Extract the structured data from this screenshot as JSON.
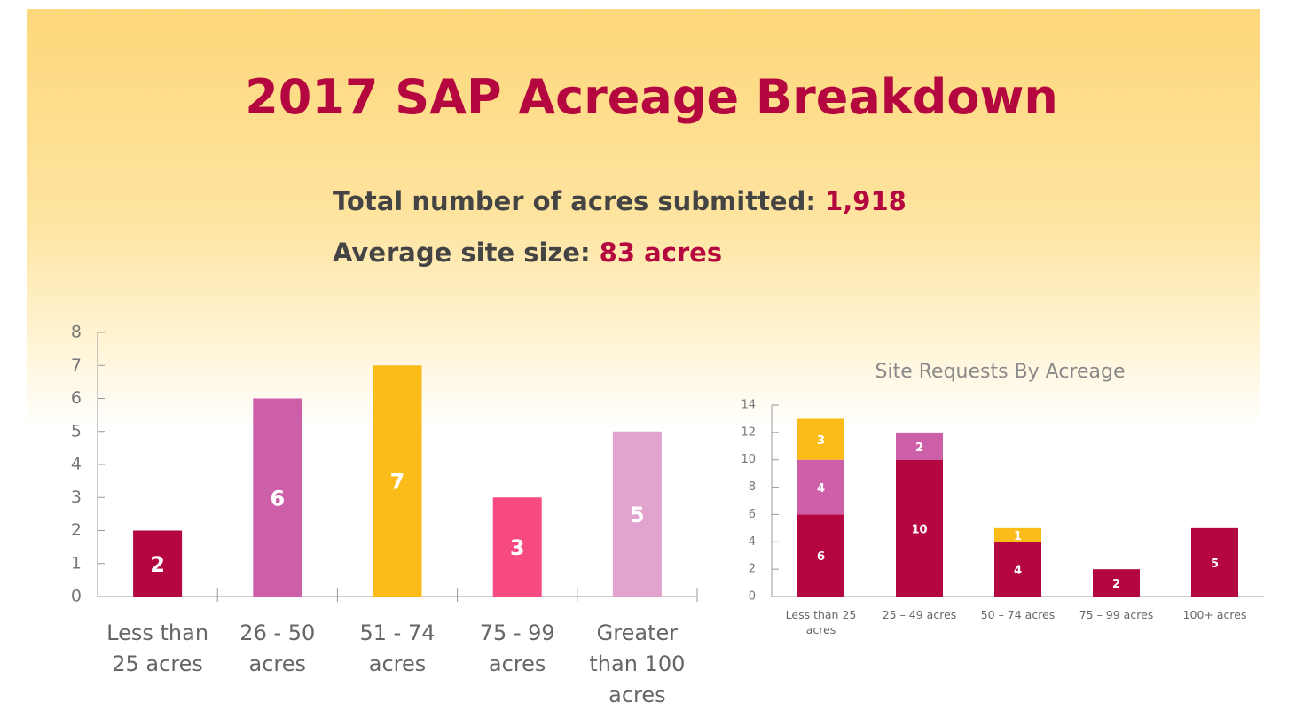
{
  "title": "2017 SAP Acreage Breakdown",
  "stats": [
    {
      "label": "Total number of acres submitted:",
      "value": "1,918"
    },
    {
      "label": "Average site size:",
      "value": "83 acres"
    }
  ],
  "chart_data": [
    {
      "type": "bar",
      "categories": [
        "Less than 25 acres",
        "26 - 50 acres",
        "51 - 74 acres",
        "75 - 99 acres",
        "Greater than 100 acres"
      ],
      "values": [
        2,
        6,
        7,
        3,
        5
      ],
      "colors": [
        "#b5073f",
        "#cc5fa8",
        "#fbbc1a",
        "#f74a80",
        "#e2a3cf"
      ],
      "ylim": [
        0,
        8
      ],
      "yticks": [
        0,
        1,
        2,
        3,
        4,
        5,
        6,
        7,
        8
      ]
    },
    {
      "type": "stacked_bar",
      "title": "Site Requests By Acreage",
      "categories": [
        "Less than 25 acres",
        "25 – 49 acres",
        "50 – 74 acres",
        "75 – 99 acres",
        "100+ acres"
      ],
      "series": [
        {
          "color": "#b5073f",
          "values": [
            6,
            10,
            4,
            2,
            5
          ]
        },
        {
          "color": "#cc5fa8",
          "values": [
            4,
            2,
            null,
            null,
            null
          ]
        },
        {
          "color": "#fbbc1a",
          "values": [
            3,
            null,
            1,
            null,
            null
          ]
        }
      ],
      "ylim": [
        0,
        14
      ],
      "yticks": [
        0,
        2,
        4,
        6,
        8,
        10,
        12,
        14
      ]
    }
  ]
}
